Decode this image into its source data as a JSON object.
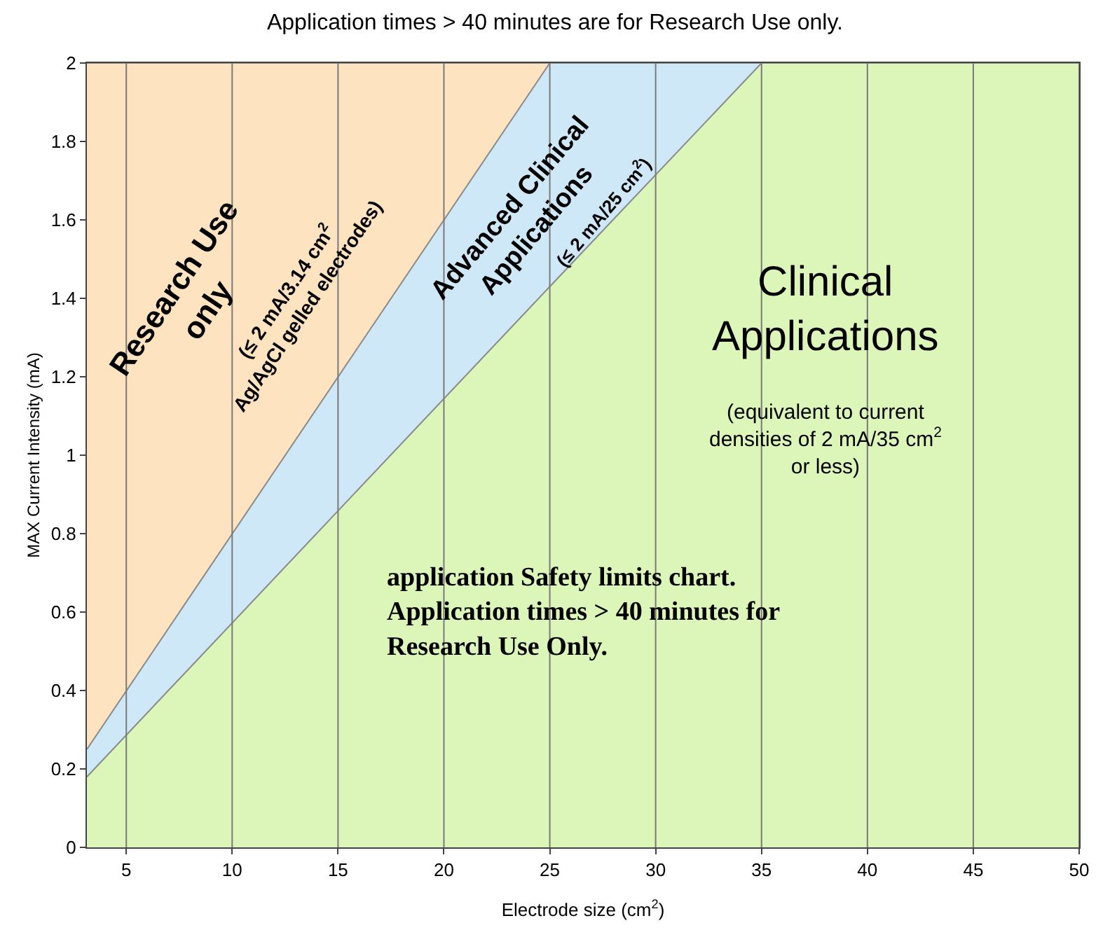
{
  "chart_data": {
    "type": "area",
    "stacked": true,
    "title": "Application times > 40 minutes are for Research Use only.",
    "xlabel": "Electrode size (cm$^{2}$)",
    "ylabel": "MAX Current Intensity (mA)",
    "x": [
      3.14,
      25,
      35,
      50
    ],
    "series": [
      {
        "color": "#dcf5b8",
        "values": [
          0.18,
          1.43,
          2,
          2
        ]
      },
      {
        "color": "#cfe8f7",
        "values": [
          0.07,
          0.57,
          0,
          0
        ]
      },
      {
        "color": "#fde3c0",
        "values": [
          1.75,
          0,
          0,
          0
        ]
      }
    ],
    "xlim": [
      3.14,
      50
    ],
    "xticks": [
      5,
      10,
      15,
      20,
      25,
      30,
      35,
      40,
      45,
      50
    ],
    "ylim": [
      0,
      2
    ],
    "yticks": [
      0,
      0.2,
      0.4,
      0.6,
      0.8,
      1,
      1.2,
      1.4,
      1.6,
      1.8,
      2
    ],
    "grid": "x",
    "annotations": [
      "Research Use\nonly",
      "(≤ 2 mA/3.14 cm$^{2}$\nAg/AgCl gelled electrodes)",
      "Advanced Clinical\nApplications",
      "(≤ 2 mA/25 cm$^{2}$)",
      "Clinical\nApplications",
      "(equivalent to current\ndensities of 2 mA/35 cm$^{2}$\nor less)",
      "application Safety limits chart.\nApplication times > 40 minutes for\nResearch Use Only."
    ]
  }
}
